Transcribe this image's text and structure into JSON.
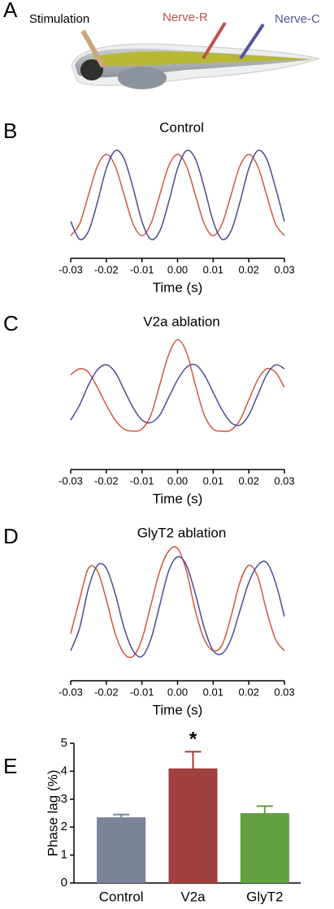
{
  "figure_a": {
    "panel": "A",
    "stimulation": "Stimulation",
    "nerve_r": "Nerve-R",
    "nerve_c": "Nerve-C"
  },
  "chart_data": [
    {
      "type": "line",
      "panel": "B",
      "title": "Control",
      "xlabel": "Time (s)",
      "x": [
        -0.03,
        -0.0275,
        -0.025,
        -0.0225,
        -0.02,
        -0.0175,
        -0.015,
        -0.0125,
        -0.01,
        -0.0075,
        -0.005,
        -0.0025,
        0,
        0.0025,
        0.005,
        0.0075,
        0.01,
        0.0125,
        0.015,
        0.0175,
        0.02,
        0.0225,
        0.025,
        0.0275,
        0.03
      ],
      "series": [
        {
          "color": "#d2553f",
          "values": [
            -1,
            -0.71,
            0,
            0.71,
            1,
            0.71,
            0,
            -0.71,
            -1,
            -0.71,
            0,
            0.71,
            1,
            0.71,
            0,
            -0.71,
            -1,
            -0.71,
            0,
            0.71,
            1,
            0.71,
            0,
            -0.71,
            -1
          ]
        },
        {
          "color": "#4b4a9a",
          "values": [
            -0.65,
            -1.09,
            -0.89,
            -0.18,
            0.65,
            1.09,
            0.89,
            0.18,
            -0.65,
            -1.09,
            -0.89,
            -0.18,
            0.65,
            1.09,
            0.89,
            0.18,
            -0.65,
            -1.09,
            -0.89,
            -0.18,
            0.65,
            1.09,
            0.89,
            0.18,
            -0.65
          ]
        }
      ],
      "xlim": [
        -0.03,
        0.03
      ],
      "ylim": [
        -1.2,
        1.2
      ],
      "xticks": [
        -0.03,
        -0.02,
        -0.01,
        {
          "value": 0,
          "label": "0.00"
        },
        0.01,
        0.02,
        0.03
      ]
    },
    {
      "type": "line",
      "panel": "C",
      "title": "V2a ablation",
      "xlabel": "Time (s)",
      "x": [
        -0.03,
        -0.0275,
        -0.025,
        -0.0225,
        -0.02,
        -0.0175,
        -0.015,
        -0.0125,
        -0.01,
        -0.0075,
        -0.005,
        -0.0025,
        0,
        0.0025,
        0.005,
        0.0075,
        0.01,
        0.0125,
        0.015,
        0.0175,
        0.02,
        0.0225,
        0.025,
        0.0275,
        0.03
      ],
      "series": [
        {
          "color": "#d2553f",
          "values": [
            0.3,
            0.42,
            0.35,
            0.05,
            -0.3,
            -0.6,
            -0.78,
            -0.82,
            -0.78,
            -0.5,
            0.1,
            0.7,
            1.0,
            0.75,
            0.1,
            -0.5,
            -0.78,
            -0.82,
            -0.8,
            -0.6,
            -0.2,
            0.2,
            0.42,
            0.35,
            0.05
          ]
        },
        {
          "color": "#4b4a9a",
          "values": [
            -0.6,
            -0.3,
            0.1,
            0.4,
            0.5,
            0.35,
            0.0,
            -0.35,
            -0.6,
            -0.65,
            -0.5,
            -0.15,
            0.2,
            0.45,
            0.5,
            0.3,
            -0.05,
            -0.4,
            -0.65,
            -0.7,
            -0.5,
            -0.1,
            0.3,
            0.5,
            0.42
          ]
        }
      ],
      "xlim": [
        -0.03,
        0.03
      ],
      "ylim": [
        -1.1,
        1.1
      ],
      "xticks": [
        -0.03,
        -0.02,
        -0.01,
        {
          "value": 0,
          "label": "0.00"
        },
        0.01,
        0.02,
        0.03
      ]
    },
    {
      "type": "line",
      "panel": "D",
      "title": "GlyT2 ablation",
      "xlabel": "Time (s)",
      "x": [
        -0.03,
        -0.0275,
        -0.025,
        -0.0225,
        -0.02,
        -0.0175,
        -0.015,
        -0.0125,
        -0.01,
        -0.0075,
        -0.005,
        -0.0025,
        0,
        0.0025,
        0.005,
        0.0075,
        0.01,
        0.0125,
        0.015,
        0.0175,
        0.02,
        0.0225,
        0.025,
        0.0275,
        0.03
      ],
      "series": [
        {
          "color": "#d2553f",
          "values": [
            -0.5,
            0.1,
            0.65,
            0.6,
            0.1,
            -0.5,
            -0.85,
            -0.9,
            -0.6,
            0.0,
            0.6,
            0.95,
            1.0,
            0.6,
            -0.1,
            -0.6,
            -0.8,
            -0.7,
            -0.2,
            0.4,
            0.7,
            0.5,
            -0.1,
            -0.6,
            -0.8
          ]
        },
        {
          "color": "#4b4a9a",
          "values": [
            -0.8,
            -0.4,
            0.3,
            0.7,
            0.65,
            0.2,
            -0.4,
            -0.8,
            -0.9,
            -0.6,
            0.0,
            0.6,
            0.85,
            0.7,
            0.2,
            -0.4,
            -0.8,
            -0.85,
            -0.6,
            -0.1,
            0.4,
            0.7,
            0.75,
            0.4,
            -0.2
          ]
        }
      ],
      "xlim": [
        -0.03,
        0.03
      ],
      "ylim": [
        -1.1,
        1.1
      ],
      "xticks": [
        -0.03,
        -0.02,
        -0.01,
        {
          "value": 0,
          "label": "0.00"
        },
        0.01,
        0.02,
        0.03
      ]
    },
    {
      "type": "bar",
      "panel": "E",
      "ylabel": "Phase lag (%)",
      "categories": [
        "Control",
        "V2a",
        "GlyT2"
      ],
      "values": [
        2.35,
        4.1,
        2.5
      ],
      "errors": [
        0.1,
        0.6,
        0.25
      ],
      "colors": [
        "#7a8399",
        "#a0403f",
        "#62a041"
      ],
      "annotations": [
        {
          "text": "*",
          "x": "V2a"
        }
      ],
      "ylim": [
        0,
        5
      ],
      "yticks": [
        0,
        1,
        2,
        3,
        4,
        5
      ]
    }
  ]
}
